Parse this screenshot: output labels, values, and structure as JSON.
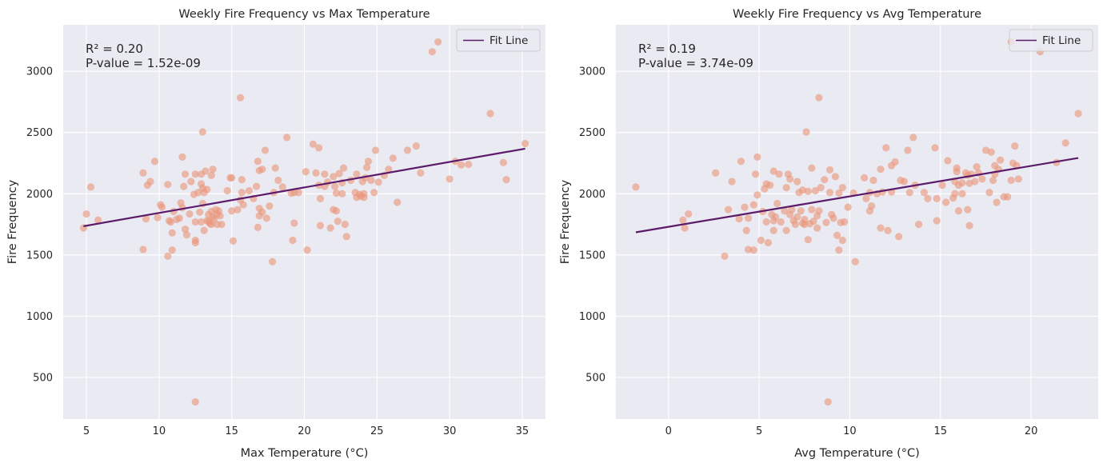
{
  "colors": {
    "background": "#eaeaf2",
    "grid": "#ffffff",
    "points": "#e8967a",
    "fit_line": "#5c1a6b"
  },
  "chart_data": [
    {
      "type": "scatter",
      "title": "Weekly Fire Frequency vs Max Temperature",
      "xlabel": "Max Temperature (°C)",
      "ylabel": "Fire Frequency",
      "xlim": [
        3.4,
        36.6
      ],
      "ylim": [
        160,
        3380
      ],
      "xticks": [
        5,
        10,
        15,
        20,
        25,
        30,
        35
      ],
      "yticks": [
        500,
        1000,
        1500,
        2000,
        2500,
        3000
      ],
      "grid": true,
      "legend": {
        "label": "Fit Line",
        "placement": "top-right"
      },
      "annotation": [
        "R² = 0.20",
        "P-value = 1.52e-09"
      ],
      "fit_line": {
        "x": [
          4.8,
          35.2
        ],
        "y": [
          1735,
          2368
        ]
      },
      "points": [
        [
          4.8,
          1720
        ],
        [
          5.0,
          1835
        ],
        [
          5.3,
          2055
        ],
        [
          5.8,
          1785
        ],
        [
          8.9,
          2170
        ],
        [
          8.9,
          1545
        ],
        [
          9.1,
          1795
        ],
        [
          9.2,
          2070
        ],
        [
          9.4,
          2100
        ],
        [
          9.7,
          2265
        ],
        [
          9.9,
          1805
        ],
        [
          10.1,
          1910
        ],
        [
          10.2,
          1890
        ],
        [
          10.6,
          1490
        ],
        [
          10.6,
          2075
        ],
        [
          10.7,
          1780
        ],
        [
          10.8,
          1770
        ],
        [
          10.9,
          1540
        ],
        [
          10.9,
          1680
        ],
        [
          11.0,
          1855
        ],
        [
          11.2,
          1790
        ],
        [
          11.4,
          1800
        ],
        [
          11.5,
          1925
        ],
        [
          11.6,
          2300
        ],
        [
          11.6,
          1885
        ],
        [
          11.7,
          2060
        ],
        [
          11.8,
          2160
        ],
        [
          11.8,
          1710
        ],
        [
          11.9,
          1665
        ],
        [
          12.1,
          1835
        ],
        [
          12.2,
          2100
        ],
        [
          12.4,
          1995
        ],
        [
          12.5,
          2160
        ],
        [
          12.5,
          1620
        ],
        [
          12.5,
          1600
        ],
        [
          12.5,
          1770
        ],
        [
          12.5,
          300
        ],
        [
          12.7,
          2010
        ],
        [
          12.8,
          1850
        ],
        [
          12.9,
          1770
        ],
        [
          12.9,
          2080
        ],
        [
          12.9,
          2160
        ],
        [
          13.0,
          2505
        ],
        [
          13.0,
          1920
        ],
        [
          13.0,
          2045
        ],
        [
          13.1,
          2010
        ],
        [
          13.1,
          1700
        ],
        [
          13.2,
          2185
        ],
        [
          13.3,
          2035
        ],
        [
          13.3,
          1780
        ],
        [
          13.4,
          1775
        ],
        [
          13.4,
          1830
        ],
        [
          13.5,
          1755
        ],
        [
          13.6,
          2150
        ],
        [
          13.6,
          1855
        ],
        [
          13.6,
          1750
        ],
        [
          13.7,
          2200
        ],
        [
          13.7,
          1810
        ],
        [
          13.8,
          1795
        ],
        [
          13.9,
          1870
        ],
        [
          14.0,
          1750
        ],
        [
          14.0,
          1835
        ],
        [
          14.1,
          1860
        ],
        [
          14.2,
          1820
        ],
        [
          14.3,
          1750
        ],
        [
          14.7,
          2025
        ],
        [
          14.9,
          2130
        ],
        [
          15.0,
          2130
        ],
        [
          15.0,
          1860
        ],
        [
          15.1,
          1615
        ],
        [
          15.4,
          1870
        ],
        [
          15.6,
          1950
        ],
        [
          15.6,
          2785
        ],
        [
          15.7,
          2010
        ],
        [
          15.7,
          2115
        ],
        [
          15.8,
          1910
        ],
        [
          16.2,
          2025
        ],
        [
          16.5,
          1960
        ],
        [
          16.7,
          2060
        ],
        [
          16.8,
          2265
        ],
        [
          16.8,
          1725
        ],
        [
          16.9,
          1820
        ],
        [
          16.9,
          2190
        ],
        [
          16.9,
          1880
        ],
        [
          17.1,
          2200
        ],
        [
          17.1,
          1850
        ],
        [
          17.3,
          2355
        ],
        [
          17.4,
          1800
        ],
        [
          17.6,
          1900
        ],
        [
          17.8,
          1445
        ],
        [
          17.9,
          2010
        ],
        [
          18.0,
          2210
        ],
        [
          18.2,
          2110
        ],
        [
          18.5,
          2055
        ],
        [
          18.8,
          2460
        ],
        [
          19.1,
          2005
        ],
        [
          19.2,
          1620
        ],
        [
          19.3,
          2010
        ],
        [
          19.3,
          1760
        ],
        [
          19.6,
          2010
        ],
        [
          20.1,
          2180
        ],
        [
          20.2,
          1540
        ],
        [
          20.6,
          2405
        ],
        [
          20.8,
          2170
        ],
        [
          21.0,
          2375
        ],
        [
          21.0,
          2070
        ],
        [
          21.1,
          1960
        ],
        [
          21.1,
          1740
        ],
        [
          21.4,
          2060
        ],
        [
          21.4,
          2160
        ],
        [
          21.6,
          2095
        ],
        [
          21.8,
          1720
        ],
        [
          22.0,
          2140
        ],
        [
          22.0,
          1870
        ],
        [
          22.1,
          2060
        ],
        [
          22.2,
          1860
        ],
        [
          22.2,
          2005
        ],
        [
          22.3,
          1775
        ],
        [
          22.4,
          2165
        ],
        [
          22.6,
          2000
        ],
        [
          22.6,
          2090
        ],
        [
          22.7,
          2210
        ],
        [
          22.8,
          1750
        ],
        [
          22.9,
          1650
        ],
        [
          23.2,
          2110
        ],
        [
          23.5,
          2010
        ],
        [
          23.6,
          1970
        ],
        [
          23.6,
          2160
        ],
        [
          23.8,
          1995
        ],
        [
          23.9,
          1980
        ],
        [
          24.0,
          2100
        ],
        [
          24.1,
          2000
        ],
        [
          24.1,
          1970
        ],
        [
          24.2,
          2130
        ],
        [
          24.3,
          2215
        ],
        [
          24.4,
          2265
        ],
        [
          24.6,
          2110
        ],
        [
          24.8,
          2010
        ],
        [
          24.9,
          2355
        ],
        [
          25.1,
          2095
        ],
        [
          25.5,
          2150
        ],
        [
          25.8,
          2200
        ],
        [
          26.1,
          2290
        ],
        [
          26.4,
          1930
        ],
        [
          27.1,
          2355
        ],
        [
          27.7,
          2390
        ],
        [
          28.0,
          2170
        ],
        [
          28.8,
          3160
        ],
        [
          29.2,
          3240
        ],
        [
          30.0,
          2120
        ],
        [
          30.4,
          2265
        ],
        [
          30.8,
          2235
        ],
        [
          31.3,
          2240
        ],
        [
          32.8,
          2655
        ],
        [
          33.7,
          2255
        ],
        [
          33.9,
          2115
        ],
        [
          35.2,
          2410
        ]
      ]
    },
    {
      "type": "scatter",
      "title": "Weekly Fire Frequency vs Avg Temperature",
      "xlabel": "Avg Temperature (°C)",
      "ylabel": "Fire Frequency",
      "xlim": [
        -2.9,
        23.7
      ],
      "ylim": [
        160,
        3380
      ],
      "xticks": [
        0,
        5,
        10,
        15,
        20
      ],
      "yticks": [
        500,
        1000,
        1500,
        2000,
        2500,
        3000
      ],
      "grid": true,
      "legend": {
        "label": "Fit Line",
        "placement": "top-right"
      },
      "annotation": [
        "R² = 0.19",
        "P-value = 3.74e-09"
      ],
      "fit_line": {
        "x": [
          -1.8,
          22.6
        ],
        "y": [
          1685,
          2292
        ]
      },
      "points": [
        [
          -1.8,
          2055
        ],
        [
          0.8,
          1785
        ],
        [
          0.9,
          1720
        ],
        [
          1.1,
          1835
        ],
        [
          2.6,
          2170
        ],
        [
          3.1,
          1490
        ],
        [
          3.3,
          1870
        ],
        [
          3.5,
          2100
        ],
        [
          3.9,
          1795
        ],
        [
          4.0,
          2265
        ],
        [
          4.2,
          1890
        ],
        [
          4.3,
          1700
        ],
        [
          4.4,
          1545
        ],
        [
          4.4,
          1800
        ],
        [
          4.7,
          1540
        ],
        [
          4.7,
          1910
        ],
        [
          4.8,
          2160
        ],
        [
          4.9,
          2300
        ],
        [
          4.9,
          1990
        ],
        [
          5.1,
          1620
        ],
        [
          5.2,
          1855
        ],
        [
          5.3,
          2040
        ],
        [
          5.4,
          2080
        ],
        [
          5.4,
          1770
        ],
        [
          5.5,
          1600
        ],
        [
          5.6,
          2070
        ],
        [
          5.7,
          1830
        ],
        [
          5.8,
          1780
        ],
        [
          5.8,
          2185
        ],
        [
          5.8,
          1700
        ],
        [
          5.9,
          1810
        ],
        [
          6.0,
          1920
        ],
        [
          6.1,
          2160
        ],
        [
          6.2,
          1770
        ],
        [
          6.4,
          1860
        ],
        [
          6.5,
          2050
        ],
        [
          6.5,
          1700
        ],
        [
          6.6,
          2160
        ],
        [
          6.7,
          1830
        ],
        [
          6.7,
          2120
        ],
        [
          6.8,
          1870
        ],
        [
          6.9,
          1780
        ],
        [
          7.0,
          1750
        ],
        [
          7.1,
          2100
        ],
        [
          7.1,
          1810
        ],
        [
          7.2,
          2010
        ],
        [
          7.3,
          1860
        ],
        [
          7.4,
          1760
        ],
        [
          7.4,
          2030
        ],
        [
          7.5,
          1790
        ],
        [
          7.5,
          1750
        ],
        [
          7.6,
          2505
        ],
        [
          7.7,
          1625
        ],
        [
          7.7,
          2020
        ],
        [
          7.8,
          1755
        ],
        [
          7.9,
          1870
        ],
        [
          7.9,
          2210
        ],
        [
          8.0,
          1775
        ],
        [
          8.1,
          2025
        ],
        [
          8.2,
          1720
        ],
        [
          8.2,
          1820
        ],
        [
          8.3,
          1860
        ],
        [
          8.3,
          2785
        ],
        [
          8.4,
          2050
        ],
        [
          8.6,
          2115
        ],
        [
          8.7,
          1765
        ],
        [
          8.8,
          300
        ],
        [
          8.9,
          2010
        ],
        [
          8.9,
          2195
        ],
        [
          9.0,
          1830
        ],
        [
          9.1,
          1800
        ],
        [
          9.2,
          2140
        ],
        [
          9.3,
          1660
        ],
        [
          9.4,
          2005
        ],
        [
          9.4,
          1540
        ],
        [
          9.5,
          1765
        ],
        [
          9.6,
          2050
        ],
        [
          9.6,
          1620
        ],
        [
          9.7,
          1770
        ],
        [
          9.9,
          1890
        ],
        [
          10.2,
          2005
        ],
        [
          10.3,
          1445
        ],
        [
          10.8,
          2130
        ],
        [
          10.9,
          1960
        ],
        [
          11.1,
          1860
        ],
        [
          11.1,
          2010
        ],
        [
          11.2,
          1900
        ],
        [
          11.3,
          2110
        ],
        [
          11.5,
          2000
        ],
        [
          11.7,
          1720
        ],
        [
          11.7,
          2200
        ],
        [
          11.8,
          2015
        ],
        [
          12.0,
          2375
        ],
        [
          12.1,
          1700
        ],
        [
          12.3,
          2015
        ],
        [
          12.3,
          2230
        ],
        [
          12.5,
          2260
        ],
        [
          12.7,
          1650
        ],
        [
          12.8,
          2110
        ],
        [
          13.0,
          2100
        ],
        [
          13.2,
          2355
        ],
        [
          13.3,
          2010
        ],
        [
          13.5,
          2460
        ],
        [
          13.6,
          2070
        ],
        [
          13.8,
          1750
        ],
        [
          14.1,
          2010
        ],
        [
          14.3,
          1960
        ],
        [
          14.7,
          2375
        ],
        [
          14.8,
          1960
        ],
        [
          14.8,
          1780
        ],
        [
          15.1,
          2070
        ],
        [
          15.3,
          1930
        ],
        [
          15.4,
          2270
        ],
        [
          15.7,
          1965
        ],
        [
          15.8,
          2100
        ],
        [
          15.8,
          2000
        ],
        [
          15.9,
          2210
        ],
        [
          15.9,
          2180
        ],
        [
          16.0,
          2070
        ],
        [
          16.0,
          1860
        ],
        [
          16.2,
          2090
        ],
        [
          16.2,
          2000
        ],
        [
          16.4,
          2170
        ],
        [
          16.5,
          2150
        ],
        [
          16.5,
          1870
        ],
        [
          16.6,
          2085
        ],
        [
          16.6,
          1740
        ],
        [
          16.7,
          2160
        ],
        [
          16.9,
          2100
        ],
        [
          17.0,
          2220
        ],
        [
          17.1,
          2170
        ],
        [
          17.3,
          2120
        ],
        [
          17.5,
          2355
        ],
        [
          17.7,
          2010
        ],
        [
          17.8,
          2340
        ],
        [
          17.9,
          2110
        ],
        [
          18.0,
          2160
        ],
        [
          18.0,
          2230
        ],
        [
          18.1,
          1930
        ],
        [
          18.2,
          2200
        ],
        [
          18.3,
          2275
        ],
        [
          18.5,
          1975
        ],
        [
          18.7,
          1975
        ],
        [
          18.9,
          2110
        ],
        [
          18.9,
          3240
        ],
        [
          19.0,
          2250
        ],
        [
          19.1,
          2390
        ],
        [
          19.2,
          2230
        ],
        [
          19.3,
          2120
        ],
        [
          20.5,
          3160
        ],
        [
          21.4,
          2255
        ],
        [
          21.9,
          2415
        ],
        [
          22.6,
          2655
        ]
      ]
    }
  ]
}
